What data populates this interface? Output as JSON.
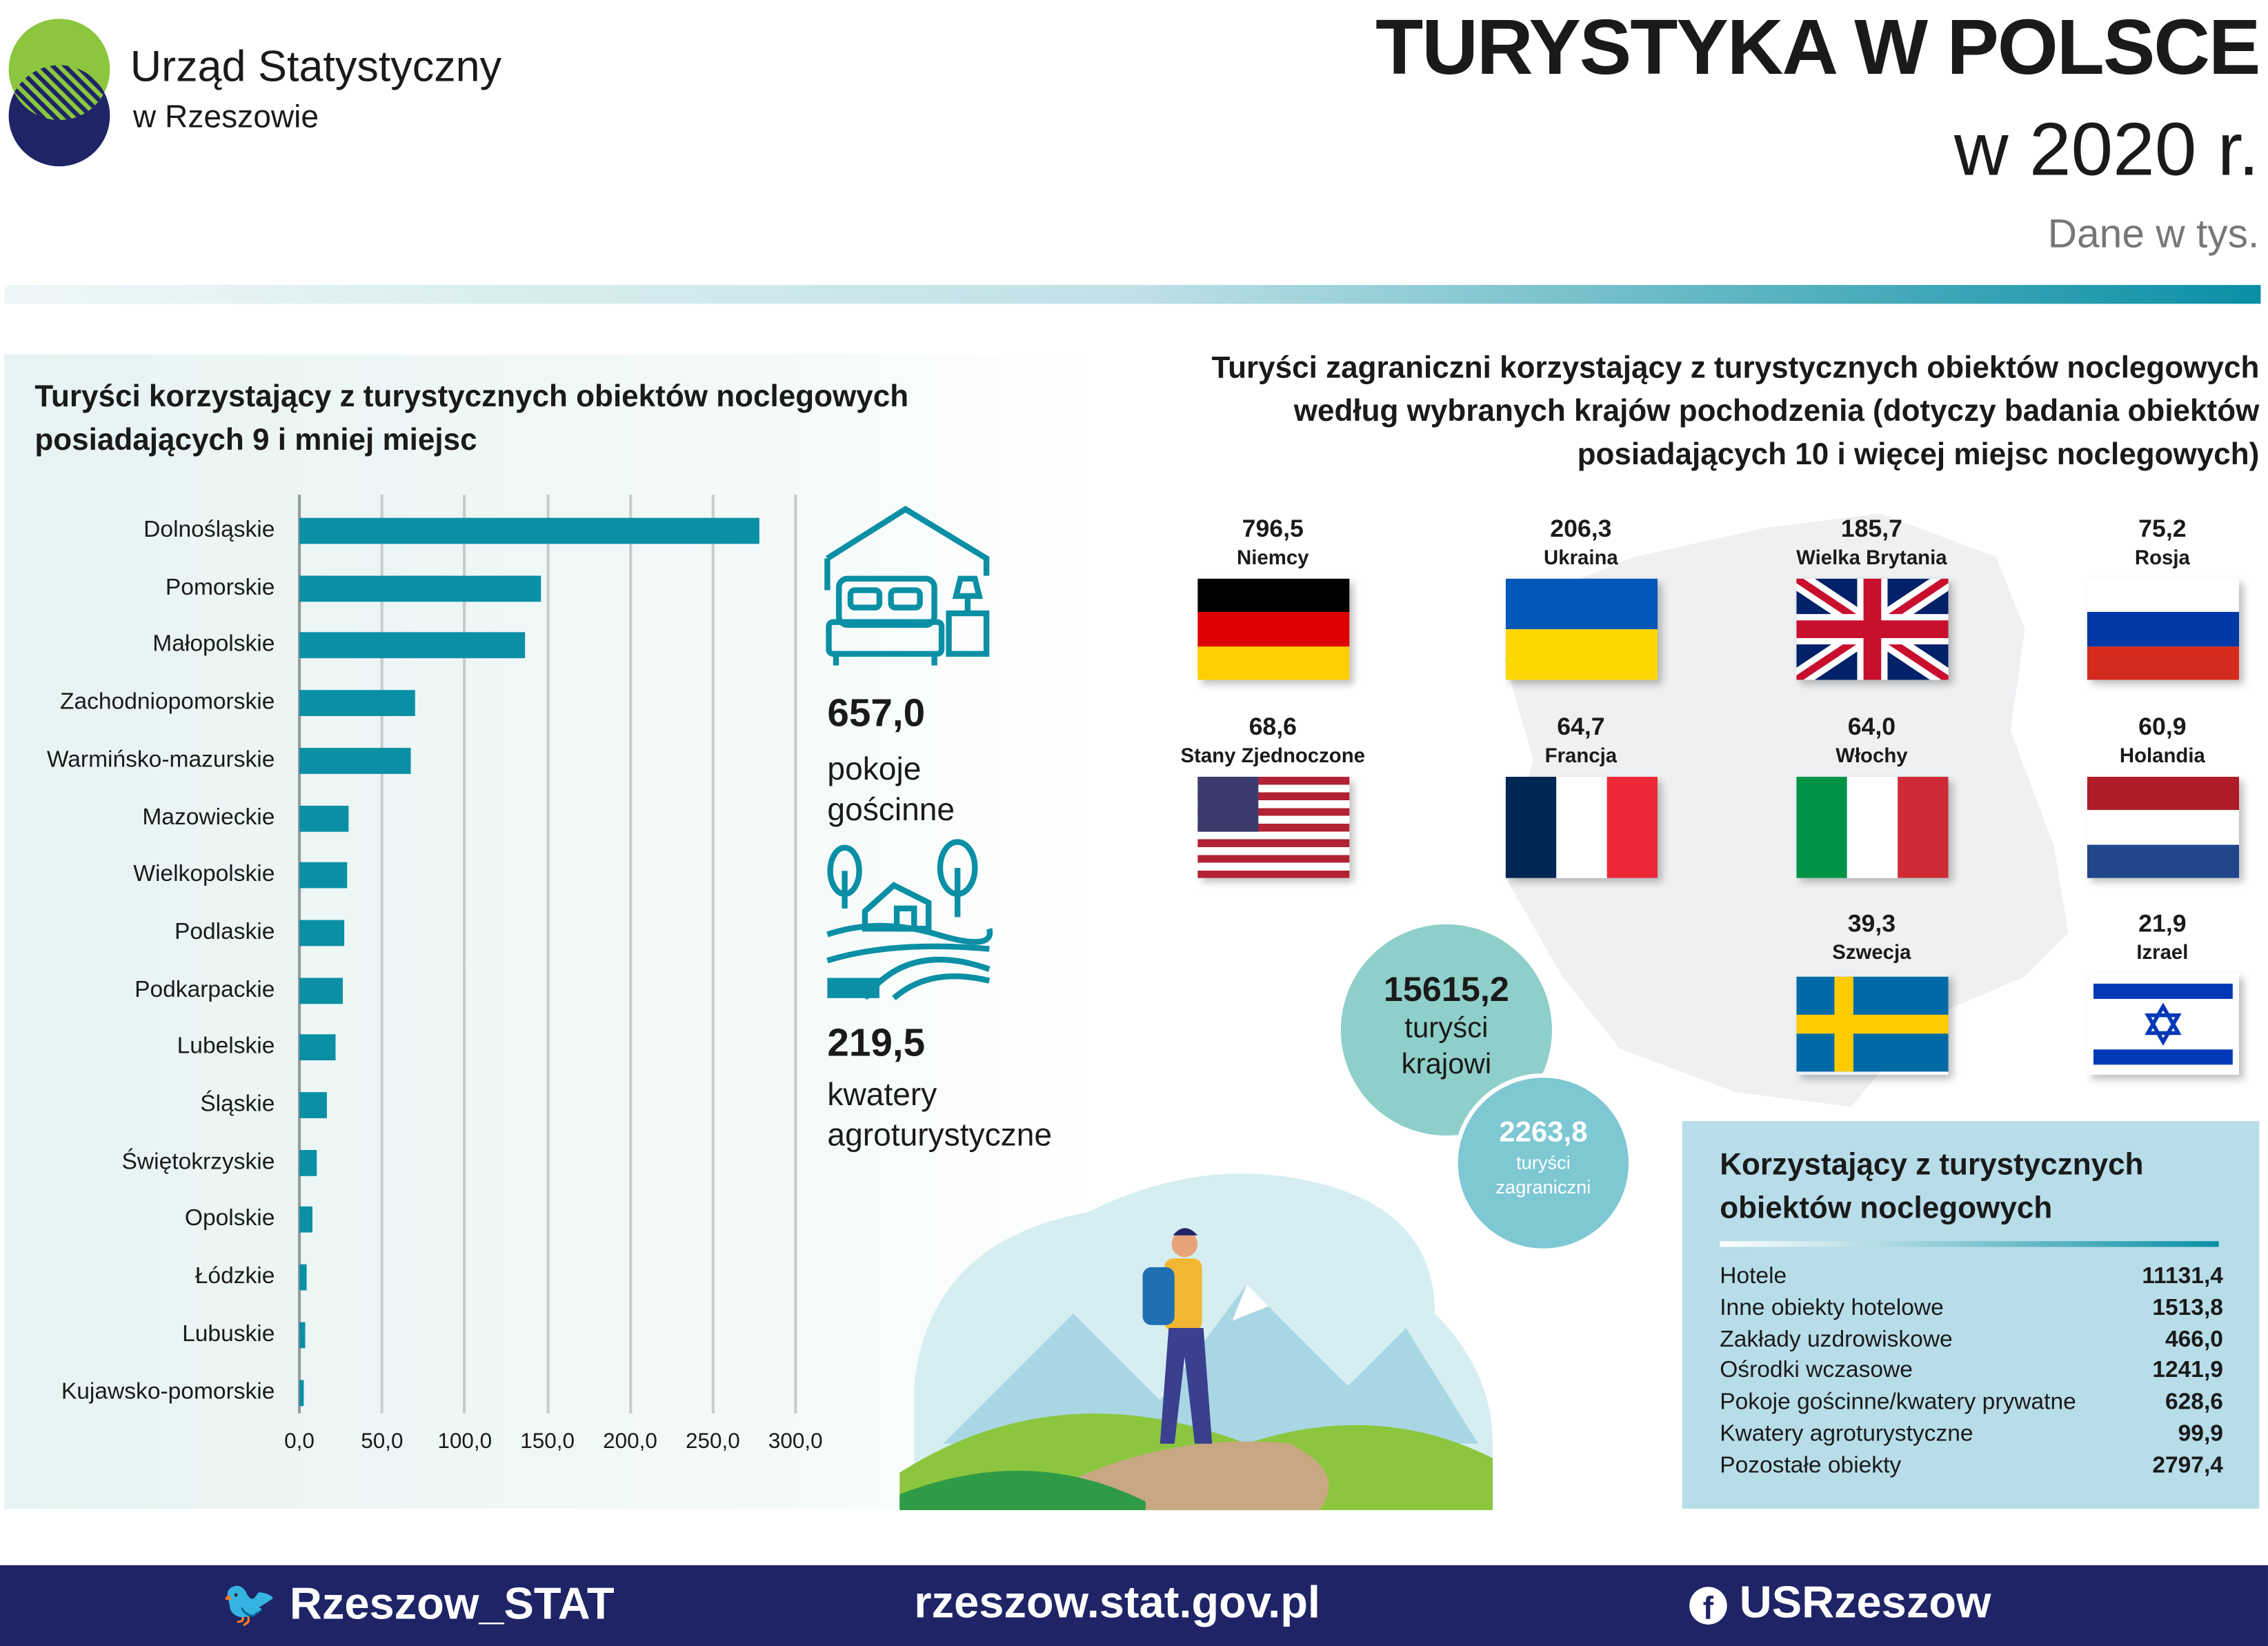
{
  "header": {
    "org_line1": "Urząd Statystyczny",
    "org_line2": "w Rzeszowie",
    "title": "TURYSTYKA W POLSCE",
    "year": "w 2020 r.",
    "unit": "Dane w tys."
  },
  "left": {
    "heading_line1": "Turyści korzystający z turystycznych obiektów noclegowych",
    "heading_line2": "posiadających 9 i mniej miejsc",
    "stat1": {
      "value": "657,0",
      "label1": "pokoje",
      "label2": "gościnne"
    },
    "stat2": {
      "value": "219,5",
      "label1": "kwatery",
      "label2": "agroturystyczne"
    }
  },
  "chart_data": {
    "type": "bar",
    "orientation": "horizontal",
    "title": "Turyści korzystający z turystycznych obiektów noclegowych posiadających 9 i mniej miejsc",
    "categories": [
      "Dolnośląskie",
      "Pomorskie",
      "Małopolskie",
      "Zachodniopomorskie",
      "Warmińsko-mazurskie",
      "Mazowieckie",
      "Wielkopolskie",
      "Podlaskie",
      "Podkarpackie",
      "Lubelskie",
      "Śląskie",
      "Świętokrzyskie",
      "Opolskie",
      "Łódzkie",
      "Lubuskie",
      "Kujawsko-pomorskie"
    ],
    "values": [
      277.7,
      146.5,
      136.1,
      70.3,
      67.7,
      29.9,
      28.7,
      27.4,
      25.9,
      22.1,
      16.6,
      10.6,
      7.6,
      4.5,
      3.2,
      2.5
    ],
    "xlim": [
      0,
      300
    ],
    "xticks": [
      "0,0",
      "50,0",
      "100,0",
      "150,0",
      "200,0",
      "250,0",
      "300,0"
    ],
    "grid": true,
    "color": "#0a8fa5"
  },
  "right": {
    "heading_line1": "Turyści zagraniczni korzystający z turystycznych obiektów noclegowych",
    "heading_line2": "według wybranych krajów pochodzenia (dotyczy badania obiektów",
    "heading_line3": "posiadających 10 i więcej miejsc noclegowych)",
    "countries": [
      {
        "value": "796,5",
        "name": "Niemcy"
      },
      {
        "value": "206,3",
        "name": "Ukraina"
      },
      {
        "value": "185,7",
        "name": "Wielka Brytania"
      },
      {
        "value": "75,2",
        "name": "Rosja"
      },
      {
        "value": "68,6",
        "name": "Stany Zjednoczone"
      },
      {
        "value": "64,7",
        "name": "Francja"
      },
      {
        "value": "64,0",
        "name": "Włochy"
      },
      {
        "value": "60,9",
        "name": "Holandia"
      },
      {
        "value": "39,3",
        "name": "Szwecja"
      },
      {
        "value": "21,9",
        "name": "Izrael"
      }
    ]
  },
  "circles": {
    "domestic_value": "15615,2",
    "domestic_l1": "turyści",
    "domestic_l2": "krajowi",
    "foreign_value": "2263,8",
    "foreign_l1": "turyści",
    "foreign_l2": "zagraniczni"
  },
  "table": {
    "heading_line1": "Korzystający z turystycznych",
    "heading_line2": "obiektów noclegowych",
    "rows": [
      {
        "label": "Hotele",
        "value": "11131,4"
      },
      {
        "label": "Inne obiekty hotelowe",
        "value": "1513,8"
      },
      {
        "label": "Zakłady uzdrowiskowe",
        "value": "466,0"
      },
      {
        "label": "Ośrodki wczasowe",
        "value": "1241,9"
      },
      {
        "label": "Pokoje gościnne/kwatery prywatne",
        "value": "628,6"
      },
      {
        "label": "Kwatery agroturystyczne",
        "value": "99,9"
      },
      {
        "label": "Pozostałe obiekty",
        "value": "2797,4"
      }
    ]
  },
  "footer": {
    "twitter": "Rzeszow_STAT",
    "website": "rzeszow.stat.gov.pl",
    "facebook": "USRzeszow"
  }
}
